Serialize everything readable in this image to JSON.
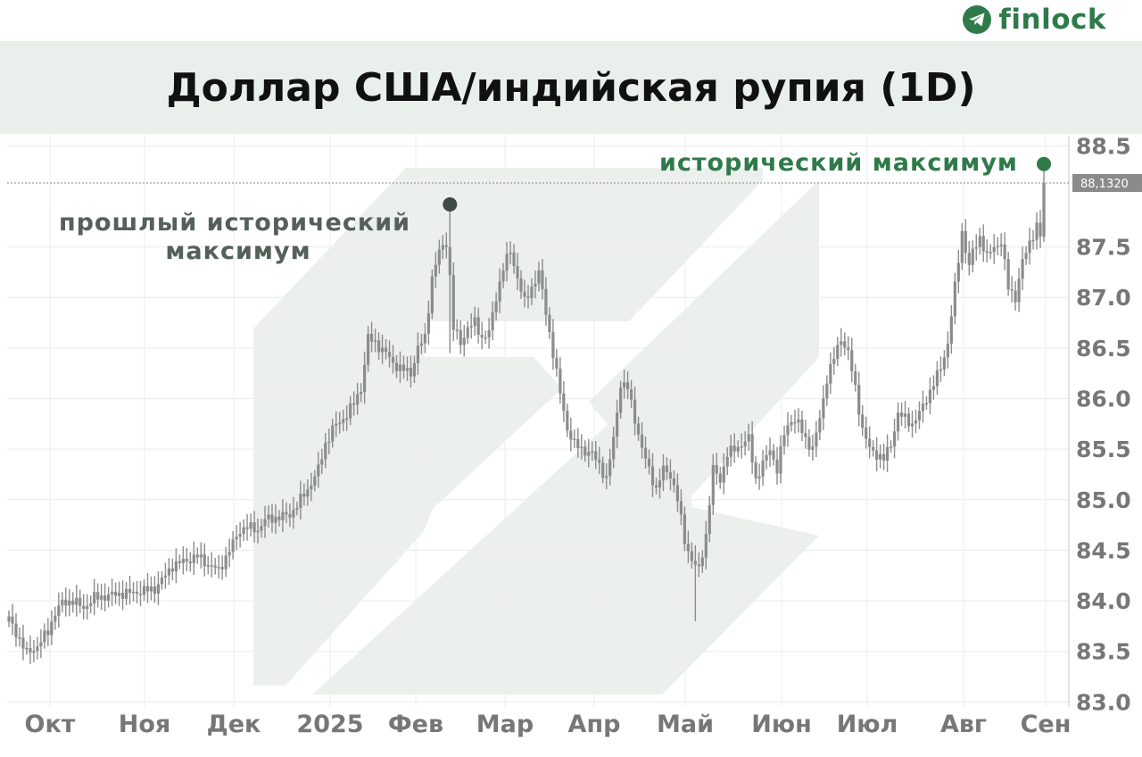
{
  "brand": {
    "name": "finlock",
    "icon": "telegram-paper-plane-icon",
    "color": "#2f7a4a"
  },
  "chart_data": {
    "type": "candlestick",
    "title": "Доллар США/индийская рупия (1D)",
    "y_ticks": [
      "88.5",
      "87.5",
      "87.0",
      "86.5",
      "86.0",
      "85.5",
      "85.0",
      "84.5",
      "84.0",
      "83.5",
      "83.0"
    ],
    "y_tick_values": [
      88.5,
      87.5,
      87.0,
      86.5,
      86.0,
      85.5,
      85.0,
      84.5,
      84.0,
      83.5,
      83.0
    ],
    "ylim": [
      82.95,
      88.6
    ],
    "x_ticks": [
      "Окт",
      "Ноя",
      "Дек",
      "2025",
      "Фев",
      "Мар",
      "Апр",
      "Май",
      "Июн",
      "Июл",
      "Авг",
      "Сен"
    ],
    "current_price": {
      "label": "88,1320",
      "value": 88.132
    },
    "annotations": [
      {
        "lines": [
          "прошлый исторический",
          "максимум"
        ],
        "value": 87.92,
        "style": "previous"
      },
      {
        "lines": [
          "исторический максимум"
        ],
        "value": 88.32,
        "style": "ath"
      }
    ],
    "candle_color": "#8c8c8c",
    "anchors": [
      [
        0,
        83.82
      ],
      [
        3,
        83.62
      ],
      [
        5,
        83.48
      ],
      [
        8,
        83.55
      ],
      [
        11,
        83.7
      ],
      [
        13,
        83.88
      ],
      [
        15,
        83.98
      ],
      [
        18,
        84.0
      ],
      [
        21,
        83.93
      ],
      [
        24,
        84.03
      ],
      [
        28,
        84.05
      ],
      [
        31,
        84.07
      ],
      [
        35,
        84.08
      ],
      [
        38,
        84.1
      ],
      [
        41,
        84.12
      ],
      [
        44,
        84.25
      ],
      [
        46,
        84.35
      ],
      [
        50,
        84.4
      ],
      [
        53,
        84.44
      ],
      [
        56,
        84.36
      ],
      [
        59,
        84.3
      ],
      [
        62,
        84.5
      ],
      [
        65,
        84.7
      ],
      [
        67,
        84.73
      ],
      [
        70,
        84.7
      ],
      [
        72,
        84.8
      ],
      [
        76,
        84.83
      ],
      [
        79,
        84.85
      ],
      [
        81,
        84.95
      ],
      [
        84,
        85.1
      ],
      [
        87,
        85.3
      ],
      [
        89,
        85.55
      ],
      [
        91,
        85.7
      ],
      [
        94,
        85.8
      ],
      [
        97,
        85.95
      ],
      [
        99,
        86.1
      ],
      [
        101,
        86.6
      ],
      [
        103,
        86.55
      ],
      [
        106,
        86.45
      ],
      [
        108,
        86.35
      ],
      [
        110,
        86.3
      ],
      [
        113,
        86.25
      ],
      [
        115,
        86.5
      ],
      [
        117,
        86.6
      ],
      [
        119,
        87.2
      ],
      [
        121,
        87.45
      ],
      [
        123,
        87.55
      ],
      [
        124,
        87.2
      ],
      [
        125,
        86.7
      ],
      [
        127,
        86.55
      ],
      [
        129,
        86.7
      ],
      [
        131,
        86.75
      ],
      [
        133,
        86.6
      ],
      [
        135,
        86.65
      ],
      [
        137,
        87.0
      ],
      [
        139,
        87.3
      ],
      [
        141,
        87.45
      ],
      [
        143,
        87.2
      ],
      [
        145,
        86.95
      ],
      [
        147,
        87.1
      ],
      [
        149,
        87.25
      ],
      [
        151,
        86.85
      ],
      [
        153,
        86.45
      ],
      [
        155,
        86.05
      ],
      [
        157,
        85.7
      ],
      [
        159,
        85.55
      ],
      [
        161,
        85.5
      ],
      [
        164,
        85.45
      ],
      [
        166,
        85.35
      ],
      [
        168,
        85.2
      ],
      [
        170,
        85.6
      ],
      [
        172,
        86.15
      ],
      [
        174,
        86.1
      ],
      [
        176,
        85.8
      ],
      [
        178,
        85.5
      ],
      [
        180,
        85.3
      ],
      [
        182,
        85.1
      ],
      [
        184,
        85.3
      ],
      [
        186,
        85.25
      ],
      [
        188,
        85.0
      ],
      [
        190,
        84.6
      ],
      [
        192,
        84.4
      ],
      [
        194,
        84.3
      ],
      [
        196,
        84.65
      ],
      [
        198,
        85.3
      ],
      [
        200,
        85.2
      ],
      [
        202,
        85.45
      ],
      [
        204,
        85.5
      ],
      [
        206,
        85.55
      ],
      [
        208,
        85.6
      ],
      [
        210,
        85.2
      ],
      [
        212,
        85.35
      ],
      [
        214,
        85.5
      ],
      [
        216,
        85.3
      ],
      [
        218,
        85.65
      ],
      [
        220,
        85.8
      ],
      [
        222,
        85.75
      ],
      [
        224,
        85.6
      ],
      [
        226,
        85.5
      ],
      [
        228,
        85.8
      ],
      [
        230,
        86.2
      ],
      [
        232,
        86.4
      ],
      [
        234,
        86.6
      ],
      [
        236,
        86.45
      ],
      [
        238,
        86.1
      ],
      [
        240,
        85.7
      ],
      [
        242,
        85.5
      ],
      [
        244,
        85.45
      ],
      [
        246,
        85.4
      ],
      [
        248,
        85.55
      ],
      [
        250,
        85.85
      ],
      [
        252,
        85.8
      ],
      [
        254,
        85.75
      ],
      [
        256,
        85.85
      ],
      [
        258,
        86.0
      ],
      [
        260,
        86.15
      ],
      [
        262,
        86.3
      ],
      [
        264,
        86.55
      ],
      [
        266,
        87.1
      ],
      [
        268,
        87.65
      ],
      [
        270,
        87.3
      ],
      [
        271,
        87.45
      ],
      [
        273,
        87.6
      ],
      [
        275,
        87.4
      ],
      [
        277,
        87.5
      ],
      [
        279,
        87.55
      ],
      [
        281,
        87.1
      ],
      [
        283,
        87.0
      ],
      [
        285,
        87.35
      ],
      [
        287,
        87.55
      ],
      [
        289,
        87.7
      ],
      [
        290,
        87.6
      ],
      [
        291,
        88.13
      ]
    ],
    "emphasized_wicks": [
      [
        124,
        87.92,
        86.45
      ],
      [
        193,
        84.55,
        83.8
      ],
      [
        291,
        88.3,
        87.55
      ]
    ]
  }
}
